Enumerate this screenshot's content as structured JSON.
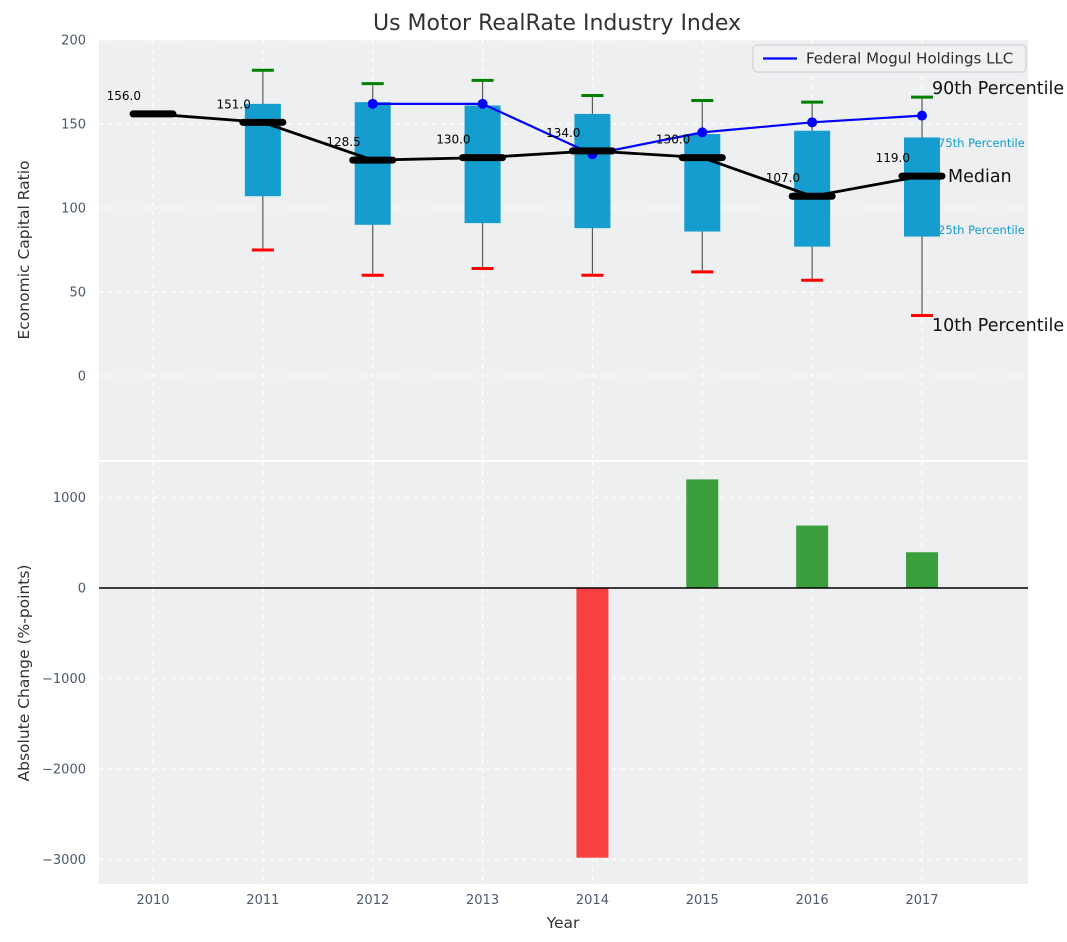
{
  "title": "Us Motor RealRate Industry Index",
  "legend": {
    "label": "Federal Mogul Holdings LLC"
  },
  "annotations": {
    "p90": "90th Percentile",
    "p75": "75th Percentile",
    "median": "Median",
    "p25": "25th Percentile",
    "p10": "10th Percentile"
  },
  "axes": {
    "xlabel": "Year",
    "top_ylabel": "Economic Capital Ratio",
    "bottom_ylabel": "Absolute Change (%-points)",
    "top_yticks": [
      "200",
      "150",
      "100",
      "50",
      "0"
    ],
    "bottom_yticks": [
      "1000",
      "0",
      "−1000",
      "−2000",
      "−3000"
    ],
    "xticks": [
      "2010",
      "2011",
      "2012",
      "2013",
      "2014",
      "2015",
      "2016",
      "2017"
    ]
  },
  "colors": {
    "box_fill": "#149dce",
    "median_line": "#000000",
    "company_line": "#0000ff",
    "p90_cap_green": "#008000",
    "p10_cap_red": "#ff0000",
    "bar_positive_green": "#3a9e3c",
    "bar_negative_red": "#f94040",
    "panel_background": "#edeff1",
    "gridline": "#ffffff",
    "whisker": "#5a5a5a",
    "tick_text": "#4c5a6d",
    "percentile_label_cyan": "#149dce"
  },
  "chart_data": [
    {
      "type": "boxplot+line",
      "title": "Us Motor RealRate Industry Index",
      "xlabel": "Year",
      "ylabel": "Economic Capital Ratio",
      "ylim": [
        -50,
        200
      ],
      "yticks": [
        200,
        150,
        100,
        50,
        0
      ],
      "grid": true,
      "legend_position": "upper right",
      "years": [
        2010,
        2011,
        2012,
        2013,
        2014,
        2015,
        2016,
        2017
      ],
      "median": [
        156.0,
        151.0,
        128.5,
        130.0,
        134.0,
        130.0,
        107.0,
        119.0
      ],
      "median_labels": [
        "156.0",
        "151.0",
        "128.5",
        "130.0",
        "134.0",
        "130.0",
        "107.0",
        "119.0"
      ],
      "q25": [
        null,
        107,
        90,
        91,
        88,
        86,
        77,
        83
      ],
      "q75": [
        null,
        162,
        163,
        161,
        156,
        144,
        146,
        142
      ],
      "p10": [
        null,
        75,
        60,
        64,
        60,
        62,
        57,
        36
      ],
      "p90": [
        null,
        182,
        174,
        176,
        167,
        164,
        163,
        166
      ],
      "series": [
        {
          "name": "Federal Mogul Holdings LLC",
          "years": [
            2012,
            2013,
            2014,
            2015,
            2016,
            2017
          ],
          "values": [
            162,
            162,
            132,
            145,
            151,
            155
          ],
          "color": "#0000ff"
        }
      ]
    },
    {
      "type": "bar",
      "xlabel": "Year",
      "ylabel": "Absolute Change (%-points)",
      "ylim": [
        -3270,
        1390
      ],
      "yticks": [
        1000,
        0,
        -1000,
        -2000,
        -3000
      ],
      "grid": true,
      "years": [
        2014,
        2015,
        2016,
        2017
      ],
      "values": [
        -2980,
        1200,
        690,
        395
      ],
      "bar_colors": [
        "#f94040",
        "#3a9e3c",
        "#3a9e3c",
        "#3a9e3c"
      ]
    }
  ]
}
